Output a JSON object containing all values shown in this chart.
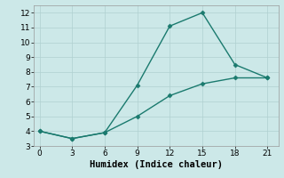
{
  "xlabel": "Humidex (Indice chaleur)",
  "background_color": "#cce8e8",
  "line_color": "#1a7a6e",
  "series1_x": [
    0,
    3,
    6,
    9,
    12,
    15,
    18,
    21
  ],
  "series1_y": [
    4.0,
    3.5,
    3.9,
    7.1,
    11.1,
    12.0,
    8.5,
    7.6
  ],
  "series2_x": [
    0,
    3,
    6,
    9,
    12,
    15,
    18,
    21
  ],
  "series2_y": [
    4.0,
    3.5,
    3.9,
    5.0,
    6.4,
    7.2,
    7.6,
    7.6
  ],
  "xlim": [
    -0.5,
    22
  ],
  "ylim": [
    3,
    12.5
  ],
  "xticks": [
    0,
    3,
    6,
    9,
    12,
    15,
    18,
    21
  ],
  "yticks": [
    3,
    4,
    5,
    6,
    7,
    8,
    9,
    10,
    11,
    12
  ],
  "marker": "D",
  "markersize": 2.5,
  "linewidth": 1.0,
  "grid_color": "#b0d0d0",
  "tick_labelsize": 6.5,
  "xlabel_fontsize": 7.5
}
